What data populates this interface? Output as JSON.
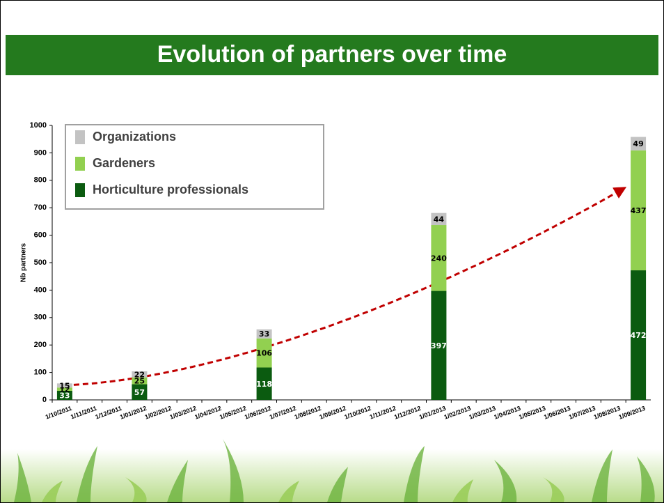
{
  "chart_data": {
    "type": "bar",
    "stacked": true,
    "title": "Evolution of partners over time",
    "y_label": "Nb partners",
    "categories": [
      "1/10/2011",
      "1/11/2011",
      "1/12/2011",
      "1/01/2012",
      "1/02/2012",
      "1/03/2012",
      "1/04/2012",
      "1/05/2012",
      "1/06/2012",
      "1/07/2012",
      "1/08/2012",
      "1/09/2012",
      "1/10/2012",
      "1/11/2012",
      "1/12/2012",
      "1/01/2013",
      "1/02/2013",
      "1/03/2013",
      "1/04/2013",
      "1/05/2013",
      "1/06/2013",
      "1/07/2013",
      "1/08/2013",
      "1/09/2013"
    ],
    "series": [
      {
        "name": "Horticulture professionals",
        "color": "#0b5b10",
        "values": [
          33,
          null,
          null,
          57,
          null,
          null,
          null,
          null,
          118,
          null,
          null,
          null,
          null,
          null,
          null,
          397,
          null,
          null,
          null,
          null,
          null,
          null,
          null,
          472
        ]
      },
      {
        "name": "Gardeners",
        "color": "#92d050",
        "values": [
          12,
          null,
          null,
          25,
          null,
          null,
          null,
          null,
          106,
          null,
          null,
          null,
          null,
          null,
          null,
          240,
          null,
          null,
          null,
          null,
          null,
          null,
          null,
          437
        ]
      },
      {
        "name": "Organizations",
        "color": "#c3c3c3",
        "values": [
          15,
          null,
          null,
          22,
          null,
          null,
          null,
          null,
          33,
          null,
          null,
          null,
          null,
          null,
          null,
          44,
          null,
          null,
          null,
          null,
          null,
          null,
          null,
          49
        ]
      }
    ],
    "ylim": [
      0,
      1000
    ],
    "yticks": [
      0,
      100,
      200,
      300,
      400,
      500,
      600,
      700,
      800,
      900,
      1000
    ],
    "legend": "upper left"
  }
}
